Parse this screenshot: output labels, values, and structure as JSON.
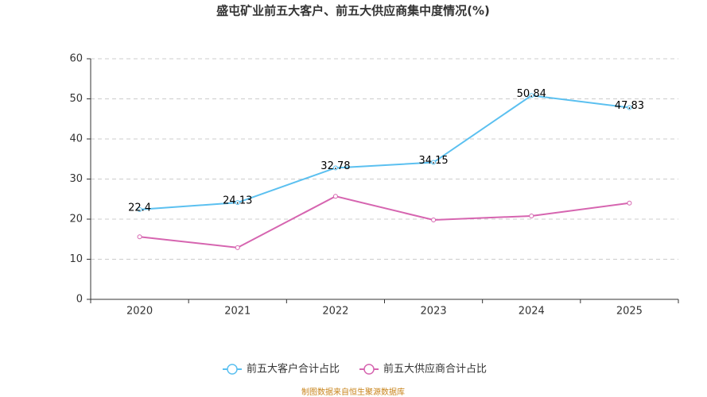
{
  "chart_data": {
    "type": "line",
    "title": "盛屯矿业前五大客户、前五大供应商集中度情况(%)",
    "categories": [
      "2020",
      "2021",
      "2022",
      "2023",
      "2024",
      "2025"
    ],
    "series": [
      {
        "name": "前五大客户合计占比",
        "color": "#5bc0f0",
        "values": [
          22.4,
          24.13,
          32.78,
          34.15,
          50.84,
          47.83
        ],
        "show_labels": true
      },
      {
        "name": "前五大供应商合计占比",
        "color": "#d665b0",
        "values": [
          15.6,
          12.9,
          25.7,
          19.8,
          20.8,
          24.0
        ],
        "show_labels": false
      }
    ],
    "ylim": [
      0,
      60
    ],
    "yticks": [
      0,
      10,
      20,
      30,
      40,
      50,
      60
    ],
    "grid": true,
    "source": "制图数据来自恒生聚源数据库"
  }
}
